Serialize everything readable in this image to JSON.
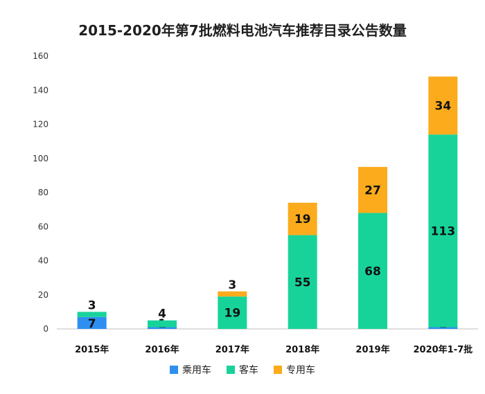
{
  "chart_data": {
    "type": "bar",
    "stacked": true,
    "title": "2015-2020年第7批燃料电池汽车推荐目录公告数量",
    "categories": [
      "2015年",
      "2016年",
      "2017年",
      "2018年",
      "2019年",
      "2020年1-7批"
    ],
    "series": [
      {
        "name": "乘用车",
        "color": "#2e8ff0",
        "values": [
          7,
          1,
          0,
          0,
          0,
          1
        ]
      },
      {
        "name": "客车",
        "color": "#17d39a",
        "values": [
          3,
          4,
          19,
          55,
          68,
          113
        ]
      },
      {
        "name": "专用车",
        "color": "#fbab1c",
        "values": [
          0,
          0,
          3,
          19,
          27,
          34
        ]
      }
    ],
    "data_labels": [
      [
        "7",
        "1",
        "",
        "",
        "",
        "1"
      ],
      [
        "3",
        "4",
        "19",
        "55",
        "68",
        "113"
      ],
      [
        "",
        "",
        "3",
        "19",
        "27",
        "34"
      ]
    ],
    "ylim": [
      0,
      160
    ],
    "yticks": [
      0,
      20,
      40,
      60,
      80,
      100,
      120,
      140,
      160
    ],
    "grid": false,
    "legend": "bottom"
  }
}
